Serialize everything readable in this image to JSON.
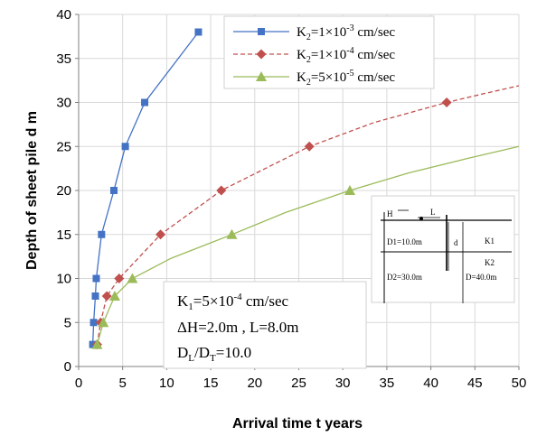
{
  "chart_data": {
    "type": "line",
    "xlabel": "Arrival time  t years",
    "ylabel": "Depth of sheet pile  d  m",
    "xlim": [
      0,
      50
    ],
    "ylim": [
      0,
      40
    ],
    "xticks": [
      "0",
      "5",
      "10",
      "15",
      "20",
      "25",
      "30",
      "35",
      "40",
      "45",
      "50"
    ],
    "yticks": [
      "0",
      "5",
      "10",
      "15",
      "20",
      "25",
      "30",
      "35",
      "40"
    ],
    "grid": true,
    "legend_position": "top-right",
    "series": [
      {
        "name": "K₂=1×10⁻³ cm/sec",
        "color": "#4472C4",
        "marker": "square",
        "line_style": "solid",
        "points": [
          [
            1.6,
            2.5
          ],
          [
            1.7,
            5
          ],
          [
            1.9,
            8
          ],
          [
            2.0,
            10
          ],
          [
            2.6,
            15
          ],
          [
            4.0,
            20
          ],
          [
            5.3,
            25
          ],
          [
            7.5,
            30
          ],
          [
            13.6,
            38
          ]
        ],
        "curve": [
          [
            1.6,
            2.5
          ],
          [
            1.7,
            5
          ],
          [
            1.9,
            8
          ],
          [
            2.0,
            10
          ],
          [
            2.6,
            15
          ],
          [
            4.0,
            20
          ],
          [
            5.3,
            25
          ],
          [
            7.5,
            30
          ],
          [
            13.6,
            38
          ]
        ]
      },
      {
        "name": "K₂=1×10⁻⁴ cm/sec",
        "color": "#C0504D",
        "marker": "diamond",
        "line_style": "dashed",
        "points": [
          [
            2.1,
            2.5
          ],
          [
            2.5,
            5
          ],
          [
            3.2,
            8
          ],
          [
            4.6,
            10
          ],
          [
            9.3,
            15
          ],
          [
            16.2,
            20
          ],
          [
            26.2,
            25
          ],
          [
            41.8,
            30
          ]
        ],
        "curve": [
          [
            2.1,
            2.5
          ],
          [
            2.5,
            5
          ],
          [
            3.2,
            8
          ],
          [
            4.6,
            10
          ],
          [
            9.3,
            15
          ],
          [
            16.2,
            20
          ],
          [
            26.2,
            25
          ],
          [
            33.5,
            27.7
          ],
          [
            41.8,
            30
          ],
          [
            46.0,
            31.0
          ],
          [
            50.0,
            31.9
          ]
        ]
      },
      {
        "name": "K₂=5×10⁻⁵ cm/sec",
        "color": "#9BBB59",
        "marker": "triangle",
        "line_style": "solid",
        "points": [
          [
            2.1,
            2.5
          ],
          [
            2.8,
            5
          ],
          [
            4.1,
            8
          ],
          [
            6.1,
            10
          ],
          [
            17.4,
            15
          ],
          [
            30.8,
            20
          ]
        ],
        "curve": [
          [
            2.1,
            2.5
          ],
          [
            2.8,
            5
          ],
          [
            4.1,
            8
          ],
          [
            6.1,
            10
          ],
          [
            10.5,
            12.3
          ],
          [
            17.4,
            15
          ],
          [
            23.5,
            17.5
          ],
          [
            30.8,
            20
          ],
          [
            37.5,
            22.0
          ],
          [
            44.0,
            23.6
          ],
          [
            50.0,
            25.0
          ]
        ]
      }
    ],
    "annotation_box": {
      "line1_main": "K",
      "line1_sub": "1",
      "line1_rest": "=5×10",
      "line1_exp": "-4",
      "line1_unit": " cm/sec",
      "line2": "ΔH=2.0m , L=8.0m",
      "line3_a": "D",
      "line3_a_sub": "L",
      "line3_b": "/D",
      "line3_b_sub": "T",
      "line3_c": "=10.0"
    },
    "inset": {
      "H": "H",
      "L": "L",
      "d": "d",
      "D1": "D1=10.0m",
      "D2": "D2=30.0m",
      "D": "D=40.0m",
      "K1": "K1",
      "K2": "K2"
    }
  }
}
